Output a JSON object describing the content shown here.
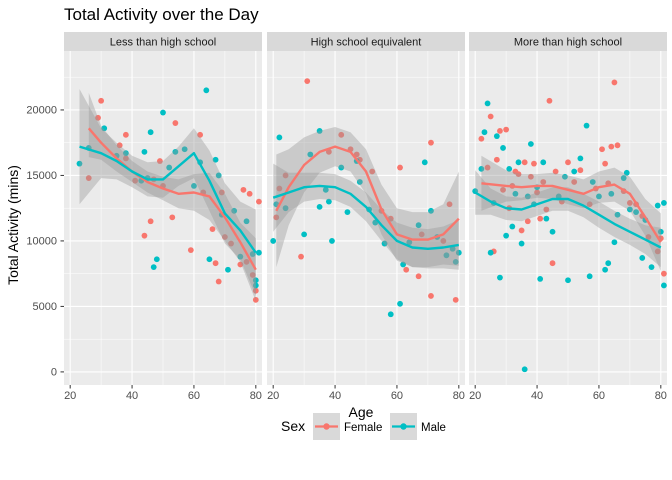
{
  "chart_data": {
    "type": "scatter",
    "title": "Total Activity over the Day",
    "xlabel": "Age",
    "ylabel": "Total Activity (mins)",
    "xlim": [
      18,
      82
    ],
    "ylim": [
      -1000,
      24500
    ],
    "x_ticks": [
      20,
      40,
      60,
      80
    ],
    "y_ticks": [
      0,
      5000,
      10000,
      15000,
      20000
    ],
    "grid": true,
    "facets": [
      "Less than high school",
      "High school equivalent",
      "More than high school"
    ],
    "legend": {
      "title": "Sex",
      "position": "bottom",
      "entries": [
        "Female",
        "Male"
      ]
    },
    "colors": {
      "Female": "#F8766D",
      "Male": "#00BFC4",
      "panel_bg": "#EBEBEB",
      "strip_bg": "#D9D9D9",
      "ribbon": "#999999"
    },
    "points": {
      "Less than high school": {
        "Female": [
          [
            26,
            14800
          ],
          [
            29,
            19400
          ],
          [
            30,
            20700
          ],
          [
            36,
            17300
          ],
          [
            38,
            18100
          ],
          [
            38,
            16300
          ],
          [
            41,
            14600
          ],
          [
            44,
            10400
          ],
          [
            46,
            11500
          ],
          [
            47,
            14700
          ],
          [
            49,
            16100
          ],
          [
            50,
            14200
          ],
          [
            53,
            11800
          ],
          [
            54,
            19000
          ],
          [
            59,
            9300
          ],
          [
            62,
            18100
          ],
          [
            63,
            13700
          ],
          [
            66,
            10900
          ],
          [
            67,
            8300
          ],
          [
            68,
            6900
          ],
          [
            69,
            13700
          ],
          [
            70,
            10300
          ],
          [
            72,
            9800
          ],
          [
            75,
            8200
          ],
          [
            76,
            13900
          ],
          [
            77,
            8400
          ],
          [
            78,
            13600
          ],
          [
            79,
            7400
          ],
          [
            80,
            6200
          ],
          [
            80,
            5500
          ],
          [
            81,
            13000
          ]
        ],
        "Male": [
          [
            23,
            15900
          ],
          [
            26,
            17100
          ],
          [
            31,
            18600
          ],
          [
            35,
            16500
          ],
          [
            38,
            16700
          ],
          [
            43,
            14600
          ],
          [
            44,
            16800
          ],
          [
            45,
            14800
          ],
          [
            46,
            18300
          ],
          [
            47,
            8000
          ],
          [
            48,
            8600
          ],
          [
            50,
            19800
          ],
          [
            52,
            15600
          ],
          [
            54,
            16800
          ],
          [
            57,
            17000
          ],
          [
            60,
            14200
          ],
          [
            62,
            16000
          ],
          [
            64,
            21500
          ],
          [
            65,
            8600
          ],
          [
            67,
            16200
          ],
          [
            68,
            15000
          ],
          [
            69,
            12000
          ],
          [
            71,
            7800
          ],
          [
            73,
            12300
          ],
          [
            75,
            8800
          ],
          [
            77,
            11500
          ],
          [
            79,
            9000
          ],
          [
            80,
            7000
          ],
          [
            80,
            6600
          ],
          [
            81,
            9100
          ]
        ]
      },
      "High school equivalent": {
        "Female": [
          [
            21,
            11800
          ],
          [
            22,
            14000
          ],
          [
            24,
            15000
          ],
          [
            29,
            8800
          ],
          [
            31,
            22200
          ],
          [
            38,
            16800
          ],
          [
            42,
            18100
          ],
          [
            45,
            17000
          ],
          [
            47,
            16600
          ],
          [
            48,
            16200
          ],
          [
            52,
            15300
          ],
          [
            55,
            12300
          ],
          [
            56,
            9800
          ],
          [
            58,
            11700
          ],
          [
            61,
            15600
          ],
          [
            63,
            7800
          ],
          [
            67,
            7300
          ],
          [
            68,
            10500
          ],
          [
            71,
            17500
          ],
          [
            71,
            5800
          ],
          [
            75,
            10000
          ],
          [
            77,
            12800
          ],
          [
            79,
            5500
          ]
        ],
        "Male": [
          [
            20,
            10000
          ],
          [
            21,
            12800
          ],
          [
            22,
            17900
          ],
          [
            24,
            12500
          ],
          [
            30,
            10500
          ],
          [
            32,
            16600
          ],
          [
            35,
            12600
          ],
          [
            35,
            18400
          ],
          [
            37,
            13900
          ],
          [
            38,
            13000
          ],
          [
            39,
            10000
          ],
          [
            42,
            15600
          ],
          [
            44,
            12200
          ],
          [
            47,
            16100
          ],
          [
            48,
            14500
          ],
          [
            51,
            12400
          ],
          [
            53,
            11400
          ],
          [
            56,
            9800
          ],
          [
            58,
            4400
          ],
          [
            61,
            5200
          ],
          [
            62,
            8200
          ],
          [
            64,
            9900
          ],
          [
            67,
            11200
          ],
          [
            69,
            16000
          ],
          [
            71,
            12300
          ],
          [
            73,
            10300
          ],
          [
            76,
            8900
          ],
          [
            78,
            9400
          ],
          [
            79,
            8400
          ],
          [
            80,
            9100
          ]
        ]
      },
      "More than high school": {
        "Female": [
          [
            22,
            17800
          ],
          [
            24,
            15600
          ],
          [
            25,
            19500
          ],
          [
            26,
            9200
          ],
          [
            27,
            16200
          ],
          [
            28,
            18400
          ],
          [
            29,
            13900
          ],
          [
            30,
            18500
          ],
          [
            31,
            12500
          ],
          [
            32,
            14200
          ],
          [
            33,
            15300
          ],
          [
            34,
            15100
          ],
          [
            35,
            10800
          ],
          [
            36,
            16000
          ],
          [
            37,
            11500
          ],
          [
            38,
            14900
          ],
          [
            39,
            15900
          ],
          [
            40,
            13700
          ],
          [
            41,
            11700
          ],
          [
            42,
            14500
          ],
          [
            43,
            12400
          ],
          [
            44,
            20700
          ],
          [
            45,
            8300
          ],
          [
            46,
            15300
          ],
          [
            48,
            13000
          ],
          [
            50,
            16000
          ],
          [
            52,
            14500
          ],
          [
            54,
            15400
          ],
          [
            57,
            12800
          ],
          [
            59,
            14000
          ],
          [
            61,
            17000
          ],
          [
            62,
            15900
          ],
          [
            63,
            14400
          ],
          [
            64,
            17200
          ],
          [
            65,
            22100
          ],
          [
            66,
            17300
          ],
          [
            68,
            13800
          ],
          [
            70,
            12900
          ],
          [
            72,
            12800
          ],
          [
            74,
            11900
          ],
          [
            76,
            10300
          ],
          [
            79,
            9200
          ],
          [
            80,
            10200
          ],
          [
            81,
            7500
          ]
        ],
        "Male": [
          [
            20,
            13800
          ],
          [
            22,
            15500
          ],
          [
            23,
            18300
          ],
          [
            24,
            20500
          ],
          [
            25,
            9100
          ],
          [
            26,
            12900
          ],
          [
            27,
            18000
          ],
          [
            28,
            7200
          ],
          [
            29,
            17100
          ],
          [
            30,
            10400
          ],
          [
            31,
            15500
          ],
          [
            32,
            11100
          ],
          [
            33,
            13600
          ],
          [
            34,
            16000
          ],
          [
            35,
            9800
          ],
          [
            36,
            200
          ],
          [
            37,
            13400
          ],
          [
            38,
            17400
          ],
          [
            39,
            12800
          ],
          [
            40,
            14100
          ],
          [
            41,
            7100
          ],
          [
            42,
            16000
          ],
          [
            43,
            11700
          ],
          [
            45,
            10700
          ],
          [
            47,
            13400
          ],
          [
            49,
            14900
          ],
          [
            50,
            7000
          ],
          [
            52,
            15300
          ],
          [
            54,
            16300
          ],
          [
            56,
            18800
          ],
          [
            57,
            7300
          ],
          [
            58,
            14500
          ],
          [
            60,
            13400
          ],
          [
            62,
            7800
          ],
          [
            63,
            8300
          ],
          [
            64,
            13600
          ],
          [
            65,
            9900
          ],
          [
            66,
            12000
          ],
          [
            68,
            14800
          ],
          [
            69,
            15200
          ],
          [
            70,
            12400
          ],
          [
            72,
            12200
          ],
          [
            74,
            8700
          ],
          [
            75,
            11600
          ],
          [
            77,
            8000
          ],
          [
            79,
            12700
          ],
          [
            80,
            10700
          ],
          [
            81,
            6600
          ],
          [
            81,
            12900
          ]
        ]
      }
    },
    "smooth": {
      "Less than high school": {
        "Female": {
          "x": [
            26,
            30,
            35,
            40,
            45,
            50,
            55,
            60,
            65,
            70,
            75,
            80
          ],
          "y": [
            18600,
            17500,
            16300,
            15300,
            14500,
            14000,
            13600,
            13700,
            13400,
            11800,
            9900,
            7800
          ],
          "lo": [
            16400,
            16200,
            15300,
            14500,
            13700,
            13100,
            12500,
            12300,
            11600,
            10000,
            8400,
            5400
          ],
          "hi": [
            21300,
            18800,
            17300,
            16100,
            15300,
            14900,
            14700,
            15100,
            15200,
            13600,
            11400,
            10200
          ]
        },
        "Male": {
          "x": [
            23,
            30,
            35,
            40,
            45,
            50,
            55,
            60,
            65,
            70,
            75,
            80
          ],
          "y": [
            17200,
            16700,
            16100,
            15300,
            14700,
            14700,
            15700,
            16700,
            14600,
            12100,
            10800,
            9100
          ],
          "lo": [
            12800,
            14800,
            14700,
            14100,
            13400,
            13300,
            14200,
            14800,
            12300,
            9800,
            8600,
            5800
          ],
          "hi": [
            21600,
            18600,
            17500,
            16500,
            16000,
            16100,
            17200,
            18600,
            16900,
            14400,
            13000,
            12400
          ]
        }
      },
      "High school equivalent": {
        "Female": {
          "x": [
            21,
            25,
            30,
            35,
            40,
            45,
            50,
            55,
            60,
            65,
            70,
            75,
            80
          ],
          "y": [
            12300,
            14100,
            15800,
            16800,
            17200,
            16800,
            15300,
            12400,
            10500,
            10100,
            10100,
            10500,
            11700
          ],
          "lo": [
            8000,
            11200,
            13700,
            15200,
            15700,
            15300,
            13600,
            10500,
            8500,
            8000,
            8000,
            8200,
            8100
          ],
          "hi": [
            16600,
            17000,
            17900,
            18400,
            18700,
            18300,
            17000,
            14300,
            12500,
            12200,
            12200,
            12800,
            15300
          ]
        },
        "Male": {
          "x": [
            20,
            25,
            30,
            35,
            40,
            45,
            50,
            55,
            60,
            65,
            70,
            75,
            80
          ],
          "y": [
            13300,
            13700,
            14100,
            14200,
            14100,
            13600,
            12600,
            11200,
            10000,
            9500,
            9400,
            9500,
            9700
          ],
          "lo": [
            10700,
            12200,
            13000,
            13200,
            13100,
            12600,
            11500,
            10000,
            8600,
            8000,
            7900,
            7900,
            7800
          ],
          "hi": [
            15900,
            15200,
            15200,
            15200,
            15100,
            14600,
            13700,
            12400,
            11400,
            11000,
            10900,
            11100,
            11600
          ]
        }
      },
      "More than high school": {
        "Female": {
          "x": [
            22,
            30,
            35,
            40,
            45,
            50,
            55,
            60,
            65,
            70,
            75,
            80
          ],
          "y": [
            14400,
            14200,
            14100,
            14200,
            14200,
            13900,
            13600,
            14100,
            14300,
            13600,
            11800,
            9900
          ],
          "lo": [
            12300,
            13000,
            13100,
            13300,
            13200,
            12800,
            12500,
            12900,
            13000,
            12300,
            10400,
            7700
          ],
          "hi": [
            16500,
            15400,
            15100,
            15100,
            15200,
            15000,
            14700,
            15300,
            15600,
            14900,
            13200,
            12100
          ]
        },
        "Male": {
          "x": [
            20,
            25,
            30,
            35,
            40,
            45,
            50,
            55,
            60,
            65,
            70,
            75,
            80
          ],
          "y": [
            13700,
            13000,
            12500,
            12400,
            12800,
            13200,
            13200,
            12700,
            12000,
            11300,
            10700,
            10100,
            9500
          ],
          "lo": [
            12000,
            12000,
            11600,
            11500,
            11900,
            12300,
            12300,
            11800,
            11000,
            10300,
            9700,
            9000,
            8000
          ],
          "hi": [
            15400,
            14000,
            13400,
            13300,
            13700,
            14100,
            14100,
            13600,
            13000,
            12300,
            11700,
            11200,
            11000
          ]
        }
      }
    }
  }
}
